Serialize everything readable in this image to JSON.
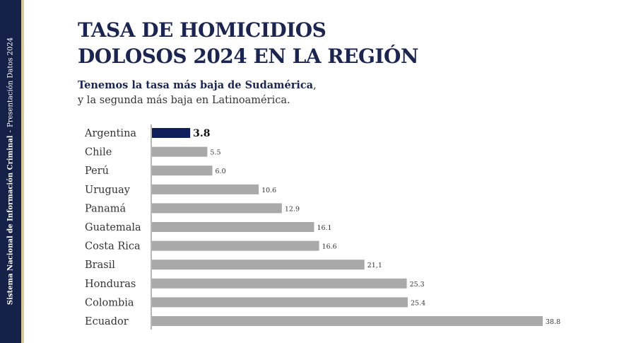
{
  "sidebar": {
    "org": "Sistema Nacional de Información Criminal",
    "separator": "-",
    "presentation": "Presentación Datos 2024"
  },
  "header": {
    "title_line1": "TASA DE HOMICIDIOS",
    "title_line2": "DOLOSOS 2024 EN LA REGIÓN",
    "subtitle_bold": "Tenemos la tasa más baja de Sudamérica",
    "subtitle_comma": ",",
    "subtitle_line2": "y la segunda más baja en Latinoamérica."
  },
  "colors": {
    "highlight": "#0f1f5c",
    "bar": "#a9a9a9",
    "axis": "#6f6f6f",
    "label": "#333333"
  },
  "chart_data": {
    "type": "bar",
    "orientation": "horizontal",
    "title": "TASA DE HOMICIDIOS DOLOSOS 2024 EN LA REGIÓN",
    "categories": [
      "Argentina",
      "Chile",
      "Perú",
      "Uruguay",
      "Panamá",
      "Guatemala",
      "Costa Rica",
      "Brasil",
      "Honduras",
      "Colombia",
      "Ecuador"
    ],
    "values": [
      3.8,
      5.5,
      6.0,
      10.6,
      12.9,
      16.1,
      16.6,
      21.1,
      25.3,
      25.4,
      38.8
    ],
    "value_labels": [
      "3.8",
      "5.5",
      "6.0",
      "10.6",
      "12.9",
      "16.1",
      "16.6",
      "21,1",
      "25.3",
      "25.4",
      "38.8"
    ],
    "highlight_index": 0,
    "xlim": [
      0,
      38.8
    ],
    "xlabel": "",
    "ylabel": ""
  }
}
